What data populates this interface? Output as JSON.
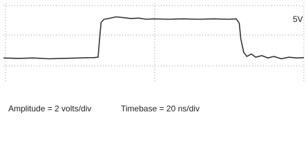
{
  "chart_data": {
    "type": "line",
    "annotation": "5V",
    "captions": [
      "Amplitude = 2 volts/div",
      "Timebase = 20 ns/div"
    ],
    "xlim": [
      0,
      200
    ],
    "ylim": [
      -3,
      7
    ],
    "series": [
      {
        "color": "#333333",
        "x": [
          0,
          10,
          20,
          30,
          40,
          50,
          60,
          63,
          64,
          65,
          67,
          70,
          75,
          80,
          85,
          90,
          95,
          100,
          110,
          120,
          130,
          140,
          150,
          155,
          157,
          158,
          160,
          162,
          165,
          168,
          172,
          176,
          180,
          185,
          190,
          195,
          200
        ],
        "values": [
          0.1,
          0.05,
          0.1,
          0.0,
          0.05,
          0.1,
          0.15,
          0.2,
          2.5,
          4.6,
          5.0,
          5.1,
          5.3,
          5.2,
          5.1,
          5.15,
          5.0,
          5.05,
          5.0,
          5.05,
          5.0,
          5.05,
          5.0,
          5.05,
          4.5,
          2.5,
          0.8,
          0.3,
          0.6,
          0.2,
          0.4,
          0.1,
          0.3,
          0.0,
          0.2,
          0.1,
          0.15
        ]
      }
    ]
  }
}
